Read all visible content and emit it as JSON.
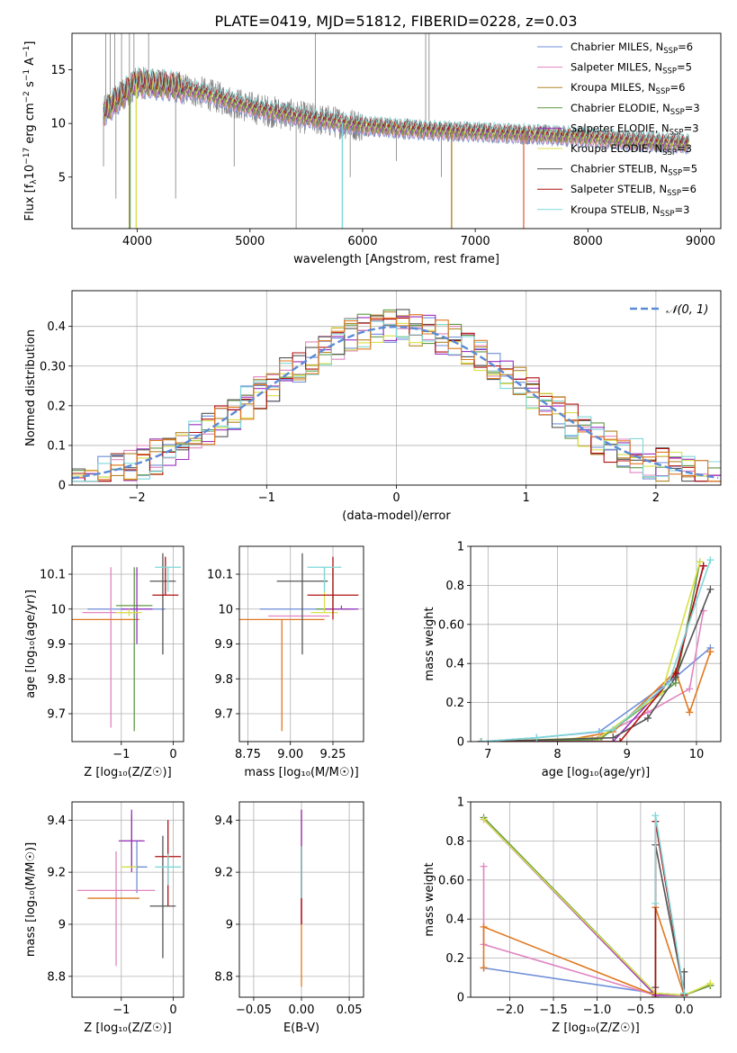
{
  "figure": {
    "title": "PLATE=0419, MJD=51812, FIBERID=0228, z=0.03"
  },
  "chart_data": [
    {
      "id": "spectrum",
      "type": "line",
      "xlabel": "wavelength [Angstrom, rest frame]",
      "ylabel_parts": [
        "Flux [f",
        "λ",
        "10",
        "−17",
        " erg cm",
        "−2",
        " s",
        "−1",
        " A",
        "−1",
        "]"
      ],
      "xlim": [
        3420,
        9180
      ],
      "ylim": [
        0.2,
        18.4
      ],
      "xticks": [
        4000,
        5000,
        6000,
        7000,
        8000,
        9000
      ],
      "yticks": [
        5,
        10,
        15
      ],
      "grid": false,
      "legend_position": "top-right",
      "legend": [
        {
          "label": "Chabrier MILES, N",
          "sub": "SSP",
          "tail": "=6",
          "color": "#6f8fd9"
        },
        {
          "label": "Salpeter MILES, N",
          "sub": "SSP",
          "tail": "=5",
          "color": "#e085c0"
        },
        {
          "label": "Kroupa MILES, N",
          "sub": "SSP",
          "tail": "=6",
          "color": "#b5852a"
        },
        {
          "label": "Chabrier ELODIE, N",
          "sub": "SSP",
          "tail": "=3",
          "color": "#5f9a45"
        },
        {
          "label": "Salpeter ELODIE, N",
          "sub": "SSP",
          "tail": "=3",
          "color": "#9b30c0"
        },
        {
          "label": "Kroupa ELODIE, N",
          "sub": "SSP",
          "tail": "=3",
          "color": "#d8e048"
        },
        {
          "label": "Chabrier STELIB, N",
          "sub": "SSP",
          "tail": "=5",
          "color": "#555555"
        },
        {
          "label": "Salpeter STELIB, N",
          "sub": "SSP",
          "tail": "=6",
          "color": "#b01010"
        },
        {
          "label": "Kroupa STELIB, N",
          "sub": "SSP",
          "tail": "=3",
          "color": "#7fd8d8"
        }
      ],
      "data_trend": {
        "wavelength": [
          3700,
          3900,
          4000,
          4300,
          4600,
          5000,
          5500,
          6000,
          6500,
          7000,
          7500,
          8000,
          8500,
          8900
        ],
        "flux": [
          11.0,
          13.0,
          13.8,
          13.5,
          12.8,
          11.5,
          10.5,
          9.8,
          9.4,
          9.2,
          9.0,
          8.7,
          8.3,
          8.1
        ]
      }
    },
    {
      "id": "residual-histogram",
      "type": "histogram",
      "xlabel": "(data-model)/error",
      "ylabel": "Normed distribution",
      "xlim": [
        -2.5,
        2.5
      ],
      "ylim": [
        0,
        0.49
      ],
      "xticks": [
        -2,
        -1,
        0,
        1,
        2
      ],
      "yticks": [
        0.0,
        0.1,
        0.2,
        0.3,
        0.4
      ],
      "grid": true,
      "legend_position": "top-right",
      "reference_label": "𝒩(0, 1)",
      "bin_width": 0.1,
      "reference_color": "#5b8bd6"
    },
    {
      "id": "age-vs-Z",
      "type": "scatter",
      "xlabel": "Z [log₁₀(Z/Z☉)]",
      "ylabel": "age  [log₁₀(age/yr)]",
      "xlim": [
        -1.95,
        0.2
      ],
      "ylim": [
        9.62,
        10.18
      ],
      "xticks": [
        -1,
        0
      ],
      "yticks": [
        9.7,
        9.8,
        9.9,
        10.0,
        10.1
      ],
      "grid": true,
      "points": [
        {
          "x": -0.9,
          "xerr": 0.75,
          "y": 10.0,
          "ylo": 10.0,
          "yhi": 10.0,
          "color": "#6f8fd9"
        },
        {
          "x": -1.2,
          "xerr": 0.55,
          "y": 9.99,
          "ylo": 9.66,
          "yhi": 10.12,
          "color": "#e085c0"
        },
        {
          "x": -1.4,
          "xerr": 0.75,
          "y": 9.97,
          "ylo": 9.97,
          "yhi": 9.97,
          "color": "#e07820"
        },
        {
          "x": -0.75,
          "xerr": 0.35,
          "y": 10.01,
          "ylo": 9.65,
          "yhi": 10.12,
          "color": "#5f9a45"
        },
        {
          "x": -0.7,
          "xerr": 0.3,
          "y": 10.0,
          "ylo": 9.9,
          "yhi": 10.12,
          "color": "#9b30c0"
        },
        {
          "x": -0.85,
          "xerr": 0.25,
          "y": 9.99,
          "ylo": 9.98,
          "yhi": 10.0,
          "color": "#d8e048"
        },
        {
          "x": -0.2,
          "xerr": 0.25,
          "y": 10.08,
          "ylo": 9.87,
          "yhi": 10.16,
          "color": "#555555"
        },
        {
          "x": -0.15,
          "xerr": 0.25,
          "y": 10.04,
          "ylo": 10.04,
          "yhi": 10.15,
          "color": "#b01010"
        },
        {
          "x": -0.1,
          "xerr": 0.25,
          "y": 10.12,
          "ylo": 10.05,
          "yhi": 10.12,
          "color": "#7fd8d8"
        }
      ]
    },
    {
      "id": "age-vs-mass",
      "type": "scatter",
      "xlabel": "mass [log₁₀(M/M☉)]",
      "ylabel": "",
      "xlim": [
        8.7,
        9.43
      ],
      "ylim": [
        9.62,
        10.18
      ],
      "xticks": [
        8.75,
        9.0,
        9.25
      ],
      "tick_labels": [
        "8.75",
        "9.00",
        "9.25"
      ],
      "yticks": [
        9.7,
        9.8,
        9.9,
        10.0,
        10.1
      ],
      "grid": true,
      "points": [
        {
          "x": 9.1,
          "xerr": 0.28,
          "y": 10.0,
          "ylo": 10.0,
          "yhi": 10.0,
          "color": "#6f8fd9"
        },
        {
          "x": 9.05,
          "xerr": 0.18,
          "y": 9.98,
          "ylo": 9.98,
          "yhi": 9.98,
          "color": "#e085c0"
        },
        {
          "x": 8.95,
          "xerr": 0.25,
          "y": 9.97,
          "ylo": 9.65,
          "yhi": 9.97,
          "color": "#e07820"
        },
        {
          "x": 9.25,
          "xerr": 0.1,
          "y": 10.0,
          "ylo": 10.0,
          "yhi": 10.12,
          "color": "#5f9a45"
        },
        {
          "x": 9.3,
          "xerr": 0.1,
          "y": 10.0,
          "ylo": 10.0,
          "yhi": 10.01,
          "color": "#9b30c0"
        },
        {
          "x": 9.2,
          "xerr": 0.08,
          "y": 9.99,
          "ylo": 9.99,
          "yhi": 10.12,
          "color": "#d8e048"
        },
        {
          "x": 9.07,
          "xerr": 0.15,
          "y": 10.08,
          "ylo": 9.87,
          "yhi": 10.16,
          "color": "#555555"
        },
        {
          "x": 9.25,
          "xerr": 0.15,
          "y": 10.04,
          "ylo": 9.97,
          "yhi": 10.15,
          "color": "#b01010"
        },
        {
          "x": 9.2,
          "xerr": 0.1,
          "y": 10.12,
          "ylo": 10.05,
          "yhi": 10.12,
          "color": "#7fd8d8"
        }
      ]
    },
    {
      "id": "mass-weight-vs-age",
      "type": "line",
      "xlabel": "age  [log₁₀(age/yr)]",
      "ylabel": "mass weight",
      "xlim": [
        6.75,
        10.35
      ],
      "ylim": [
        0,
        1.0
      ],
      "xticks": [
        7,
        8,
        9,
        10
      ],
      "yticks": [
        0.0,
        0.2,
        0.4,
        0.6,
        0.8,
        1.0
      ],
      "grid": true,
      "series": [
        {
          "color": "#6f8fd9",
          "x": [
            6.9,
            7.7,
            8.6,
            9.7,
            10.2
          ],
          "y": [
            0.0,
            0.02,
            0.05,
            0.33,
            0.48
          ]
        },
        {
          "color": "#e085c0",
          "x": [
            6.9,
            8.5,
            9.3,
            9.9,
            10.1
          ],
          "y": [
            0.0,
            0.01,
            0.15,
            0.27,
            0.67
          ]
        },
        {
          "color": "#e07820",
          "x": [
            6.9,
            8.0,
            8.8,
            9.7,
            9.9,
            10.2
          ],
          "y": [
            0.0,
            0.0,
            0.05,
            0.36,
            0.15,
            0.46
          ]
        },
        {
          "color": "#5f9a45",
          "x": [
            6.9,
            8.6,
            9.7,
            10.05
          ],
          "y": [
            0.0,
            0.01,
            0.3,
            0.92
          ]
        },
        {
          "color": "#9b30c0",
          "x": [
            6.9,
            8.8,
            9.7,
            10.1
          ],
          "y": [
            0.0,
            0.0,
            0.35,
            0.9
          ]
        },
        {
          "color": "#d8e048",
          "x": [
            6.9,
            8.6,
            9.5,
            10.05
          ],
          "y": [
            0.0,
            0.02,
            0.25,
            0.92
          ]
        },
        {
          "color": "#555555",
          "x": [
            6.9,
            8.8,
            9.3,
            9.7,
            10.2
          ],
          "y": [
            0.0,
            0.02,
            0.12,
            0.33,
            0.78
          ]
        },
        {
          "color": "#b01010",
          "x": [
            6.9,
            8.9,
            9.7,
            10.1
          ],
          "y": [
            0.0,
            0.0,
            0.35,
            0.9
          ]
        },
        {
          "color": "#7fd8d8",
          "x": [
            6.9,
            7.7,
            8.8,
            9.6,
            10.2
          ],
          "y": [
            0.0,
            0.02,
            0.06,
            0.3,
            0.93
          ]
        }
      ]
    },
    {
      "id": "mass-vs-Z",
      "type": "scatter",
      "xlabel": "Z [log₁₀(Z/Z☉)]",
      "ylabel": "mass [log₁₀(M/M☉)]",
      "xlim": [
        -1.95,
        0.2
      ],
      "ylim": [
        8.72,
        9.47
      ],
      "xticks": [
        -1,
        0
      ],
      "yticks": [
        8.8,
        9.0,
        9.2,
        9.4
      ],
      "grid": true,
      "points": [
        {
          "x": -0.7,
          "xerr": 0.2,
          "y": 9.22,
          "ylo": 9.12,
          "yhi": 9.32,
          "color": "#6f8fd9"
        },
        {
          "x": -1.1,
          "xerr": 0.75,
          "y": 9.13,
          "ylo": 8.84,
          "yhi": 9.28,
          "color": "#e085c0"
        },
        {
          "x": -1.15,
          "xerr": 0.5,
          "y": 9.1,
          "ylo": 9.1,
          "yhi": 9.1,
          "color": "#e07820"
        },
        {
          "x": -0.8,
          "xerr": 0.2,
          "y": 9.32,
          "ylo": 9.22,
          "yhi": 9.42,
          "color": "#5f9a45"
        },
        {
          "x": -0.8,
          "xerr": 0.25,
          "y": 9.32,
          "ylo": 9.2,
          "yhi": 9.44,
          "color": "#9b30c0"
        },
        {
          "x": -0.85,
          "xerr": 0.15,
          "y": 9.22,
          "ylo": 9.22,
          "yhi": 9.22,
          "color": "#d8e048"
        },
        {
          "x": -0.2,
          "xerr": 0.25,
          "y": 9.07,
          "ylo": 8.87,
          "yhi": 9.34,
          "color": "#555555"
        },
        {
          "x": -0.1,
          "xerr": 0.25,
          "y": 9.26,
          "ylo": 9.07,
          "yhi": 9.4,
          "color": "#b01010"
        },
        {
          "x": -0.1,
          "xerr": 0.25,
          "y": 9.22,
          "ylo": 9.15,
          "yhi": 9.27,
          "color": "#7fd8d8"
        }
      ]
    },
    {
      "id": "mass-vs-EBV",
      "type": "scatter",
      "xlabel": "E(B-V)",
      "ylabel": "",
      "xlim": [
        -0.065,
        0.065
      ],
      "ylim": [
        8.72,
        9.47
      ],
      "xticks": [
        -0.05,
        0.0,
        0.05
      ],
      "tick_labels": [
        "−0.05",
        "0.00",
        "0.05"
      ],
      "yticks": [
        8.8,
        9.0,
        9.2,
        9.4
      ],
      "grid": true,
      "points": [
        {
          "x": 0.0,
          "xerr": 0,
          "y": 9.1,
          "ylo": 8.76,
          "yhi": 9.44,
          "color": "#e07820"
        },
        {
          "x": 0.0,
          "xerr": 0,
          "y": 9.3,
          "ylo": 9.0,
          "yhi": 9.44,
          "color": "#9b30c0"
        },
        {
          "x": 0.0,
          "xerr": 0,
          "y": 9.2,
          "ylo": 9.0,
          "yhi": 9.3,
          "color": "#b01010"
        },
        {
          "x": 0.0,
          "xerr": 0,
          "y": 9.2,
          "ylo": 9.1,
          "yhi": 9.3,
          "color": "#7fd8d8"
        }
      ]
    },
    {
      "id": "mass-weight-vs-Z",
      "type": "line",
      "xlabel": "Z [log₁₀(Z/Z☉)]",
      "ylabel": "mass weight",
      "xlim": [
        -2.45,
        0.42
      ],
      "ylim": [
        0,
        1.0
      ],
      "xticks": [
        -2.0,
        -1.5,
        -1.0,
        -0.5,
        0.0
      ],
      "tick_labels": [
        "−2.0",
        "−1.5",
        "−1.0",
        "−0.5",
        "0.0"
      ],
      "yticks": [
        0.0,
        0.2,
        0.4,
        0.6,
        0.8,
        1.0
      ],
      "grid": true,
      "series": [
        {
          "color": "#6f8fd9",
          "x": [
            -2.3,
            -0.33,
            0.0,
            0.3
          ],
          "y": [
            0.15,
            0.02,
            0.01,
            0.06
          ]
        },
        {
          "color": "#e085c0",
          "x": [
            -2.3,
            -2.3,
            -0.33,
            0.0
          ],
          "y": [
            0.67,
            0.27,
            0.01,
            0.01
          ]
        },
        {
          "color": "#e07820",
          "x": [
            -2.3,
            -2.3,
            -0.33,
            -0.33,
            0.0,
            0.3
          ],
          "y": [
            0.15,
            0.36,
            0.01,
            0.46,
            0.01,
            0.06
          ]
        },
        {
          "color": "#5f9a45",
          "x": [
            -2.3,
            -0.33,
            0.0,
            0.3
          ],
          "y": [
            0.92,
            0.02,
            0.01,
            0.06
          ]
        },
        {
          "color": "#9b30c0",
          "x": [
            -2.3,
            -0.33,
            0.0
          ],
          "y": [
            0.91,
            0.01,
            0.01
          ]
        },
        {
          "color": "#d8e048",
          "x": [
            -2.3,
            -0.33,
            0.0,
            0.3
          ],
          "y": [
            0.91,
            0.02,
            0.01,
            0.07
          ]
        },
        {
          "color": "#555555",
          "x": [
            -0.33,
            -0.33,
            0.0,
            0.0
          ],
          "y": [
            0.05,
            0.78,
            0.02,
            0.13
          ]
        },
        {
          "color": "#b01010",
          "x": [
            -0.33,
            -0.33,
            0.0
          ],
          "y": [
            0.0,
            0.9,
            0.01
          ]
        },
        {
          "color": "#7fd8d8",
          "x": [
            -0.33,
            -0.33,
            0.0
          ],
          "y": [
            0.48,
            0.93,
            0.02
          ]
        }
      ]
    }
  ]
}
